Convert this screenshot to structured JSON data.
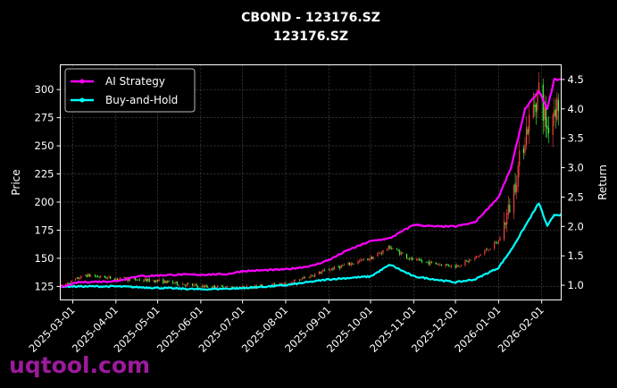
{
  "chart_data": {
    "type": "line",
    "title": "CBOND - 123176.SZ",
    "subtitle": "123176.SZ",
    "ylabel": "Price",
    "y2label": "Return",
    "ylim": [
      113,
      322
    ],
    "y2lim": [
      0.75,
      4.75
    ],
    "yticks": [
      "125",
      "150",
      "175",
      "200",
      "225",
      "250",
      "275",
      "300"
    ],
    "y2ticks": [
      "1.0",
      "1.5",
      "2.0",
      "2.5",
      "3.0",
      "3.5",
      "4.0",
      "4.5"
    ],
    "xlim": [
      "2025-02-20",
      "2026-02-15"
    ],
    "xticks": [
      "2025-03-01",
      "2025-04-01",
      "2025-05-01",
      "2025-06-01",
      "2025-07-01",
      "2025-08-01",
      "2025-09-01",
      "2025-10-01",
      "2025-11-01",
      "2025-12-01",
      "2026-01-01",
      "2026-02-01"
    ],
    "grid": true,
    "legend_position": "top-left",
    "colors": {
      "up": "#ff4040",
      "down": "#40ff40",
      "ai": "#ff00ff",
      "bh": "#00ffff",
      "background": "#000000"
    },
    "series": [
      {
        "name": "AI Strategy",
        "axis": "right",
        "points": [
          [
            "2025-02-20",
            0.96
          ],
          [
            "2025-03-05",
            1.05
          ],
          [
            "2025-04-01",
            1.07
          ],
          [
            "2025-04-15",
            1.15
          ],
          [
            "2025-05-15",
            1.18
          ],
          [
            "2025-06-01",
            1.18
          ],
          [
            "2025-06-20",
            1.19
          ],
          [
            "2025-07-01",
            1.24
          ],
          [
            "2025-08-01",
            1.27
          ],
          [
            "2025-08-20",
            1.33
          ],
          [
            "2025-09-01",
            1.43
          ],
          [
            "2025-09-15",
            1.6
          ],
          [
            "2025-10-01",
            1.75
          ],
          [
            "2025-10-15",
            1.8
          ],
          [
            "2025-11-01",
            2.03
          ],
          [
            "2025-11-15",
            2.0
          ],
          [
            "2025-12-01",
            2.0
          ],
          [
            "2025-12-15",
            2.07
          ],
          [
            "2026-01-01",
            2.5
          ],
          [
            "2026-01-10",
            3.0
          ],
          [
            "2026-01-15",
            3.5
          ],
          [
            "2026-01-20",
            4.0
          ],
          [
            "2026-01-30",
            4.3
          ],
          [
            "2026-02-05",
            4.0
          ],
          [
            "2026-02-10",
            4.5
          ],
          [
            "2026-02-15",
            4.5
          ]
        ]
      },
      {
        "name": "Buy-and-Hold",
        "axis": "right",
        "points": [
          [
            "2025-02-20",
            0.98
          ],
          [
            "2025-04-01",
            0.98
          ],
          [
            "2025-06-01",
            0.93
          ],
          [
            "2025-07-01",
            0.95
          ],
          [
            "2025-08-01",
            1.0
          ],
          [
            "2025-09-01",
            1.1
          ],
          [
            "2025-10-01",
            1.15
          ],
          [
            "2025-10-15",
            1.35
          ],
          [
            "2025-11-01",
            1.15
          ],
          [
            "2025-12-01",
            1.05
          ],
          [
            "2025-12-15",
            1.1
          ],
          [
            "2026-01-01",
            1.3
          ],
          [
            "2026-01-10",
            1.6
          ],
          [
            "2026-01-20",
            2.0
          ],
          [
            "2026-01-30",
            2.4
          ],
          [
            "2026-02-05",
            2.0
          ],
          [
            "2026-02-10",
            2.2
          ],
          [
            "2026-02-15",
            2.2
          ]
        ]
      }
    ],
    "price_path": [
      [
        "2025-02-20",
        125
      ],
      [
        "2025-03-10",
        135
      ],
      [
        "2025-04-01",
        132
      ],
      [
        "2025-05-01",
        130
      ],
      [
        "2025-06-01",
        125
      ],
      [
        "2025-07-01",
        124
      ],
      [
        "2025-08-01",
        127
      ],
      [
        "2025-09-01",
        140
      ],
      [
        "2025-10-01",
        150
      ],
      [
        "2025-10-15",
        160
      ],
      [
        "2025-11-01",
        148
      ],
      [
        "2025-12-01",
        143
      ],
      [
        "2025-12-15",
        150
      ],
      [
        "2026-01-01",
        165
      ],
      [
        "2026-01-10",
        200
      ],
      [
        "2026-01-20",
        260
      ],
      [
        "2026-01-30",
        300
      ],
      [
        "2026-02-05",
        265
      ],
      [
        "2026-02-10",
        285
      ],
      [
        "2026-02-15",
        290
      ]
    ]
  },
  "watermark": "uqtool.com"
}
